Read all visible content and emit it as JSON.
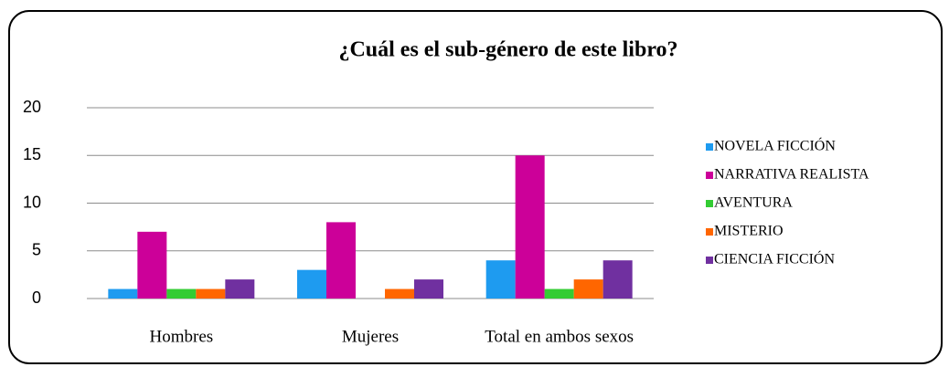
{
  "chart_data": {
    "type": "bar",
    "title": "¿Cuál es el sub-género de este libro?",
    "categories": [
      "Hombres",
      "Mujeres",
      "Total en ambos sexos"
    ],
    "series": [
      {
        "name": "NOVELA FICCIÓN",
        "color": "#1e9bf0",
        "values": [
          1,
          3,
          4
        ]
      },
      {
        "name": "NARRATIVA REALISTA",
        "color": "#cc0099",
        "values": [
          7,
          8,
          15
        ]
      },
      {
        "name": "AVENTURA",
        "color": "#33cc33",
        "values": [
          1,
          0,
          1
        ]
      },
      {
        "name": "MISTERIO",
        "color": "#ff6600",
        "values": [
          1,
          1,
          2
        ]
      },
      {
        "name": "CIENCIA FICCIÓN",
        "color": "#7030a0",
        "values": [
          2,
          2,
          4
        ]
      }
    ],
    "ylim": [
      0,
      20
    ],
    "yticks": [
      0,
      5,
      10,
      15,
      20
    ],
    "grid": true,
    "legend": "right"
  }
}
